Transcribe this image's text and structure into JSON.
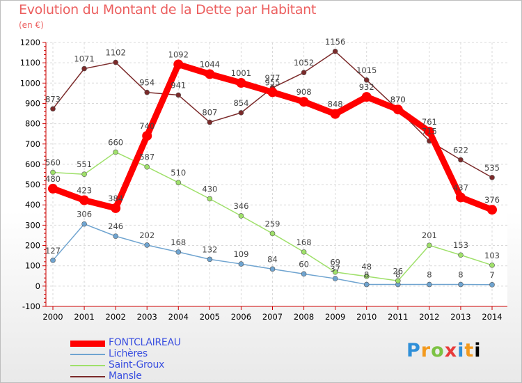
{
  "header": {
    "title": "Evolution du Montant de la Dette par Habitant",
    "unit": "(en €)"
  },
  "logo": {
    "text": "Proxiti",
    "letters": [
      "P",
      "r",
      "o",
      "x",
      "i",
      "t",
      "i"
    ]
  },
  "chart_data": {
    "type": "line",
    "title": "Evolution du Montant de la Dette par Habitant",
    "ylabel": "(en €)",
    "xlabel": "",
    "ylim": [
      -100,
      1200
    ],
    "y_ticks": [
      -100,
      0,
      100,
      200,
      300,
      400,
      500,
      600,
      700,
      800,
      900,
      1000,
      1100,
      1200
    ],
    "grid": true,
    "legend_position": "bottom-left",
    "categories": [
      "2000",
      "2001",
      "2002",
      "2003",
      "2004",
      "2005",
      "2006",
      "2007",
      "2008",
      "2009",
      "2010",
      "2011",
      "2012",
      "2013",
      "2014"
    ],
    "series": [
      {
        "name": "FONTCLAIREAU",
        "color": "#ff0000",
        "style": "thick",
        "values": [
          480,
          423,
          384,
          740,
          1092,
          1044,
          1001,
          955,
          908,
          848,
          932,
          870,
          761,
          437,
          376
        ],
        "labels": [
          "480",
          "423",
          "384",
          "740",
          "1092",
          "1044",
          "1001",
          "955",
          "908",
          "848",
          "932",
          "870",
          "761",
          "437",
          "376"
        ]
      },
      {
        "name": "Lichères",
        "color": "#6fa4d0",
        "style": "thin",
        "values": [
          127,
          306,
          246,
          202,
          168,
          132,
          109,
          84,
          60,
          37,
          8,
          8,
          8,
          8,
          7
        ],
        "labels": [
          "127",
          "306",
          "246",
          "202",
          "168",
          "132",
          "109",
          "84",
          "60",
          "37",
          "8",
          "8",
          "8",
          "8",
          "7"
        ]
      },
      {
        "name": "Saint-Groux",
        "color": "#9fe06a",
        "style": "thin",
        "values": [
          560,
          551,
          660,
          587,
          510,
          430,
          346,
          259,
          168,
          69,
          48,
          26,
          201,
          153,
          103
        ],
        "labels": [
          "560",
          "551",
          "660",
          "587",
          "510",
          "430",
          "346",
          "259",
          "168",
          "69",
          "48",
          "26",
          "201",
          "153",
          "103"
        ]
      },
      {
        "name": "Mansle",
        "color": "#7b2a2a",
        "style": "thin",
        "values": [
          873,
          1071,
          1102,
          954,
          941,
          807,
          854,
          977,
          1052,
          1156,
          1015,
          870,
          715,
          622,
          535
        ],
        "labels": [
          "873",
          "1071",
          "1102",
          "954",
          "941",
          "807",
          "854",
          "977",
          "1052",
          "1156",
          "1015",
          "870",
          "715",
          "622",
          "535"
        ]
      }
    ]
  }
}
